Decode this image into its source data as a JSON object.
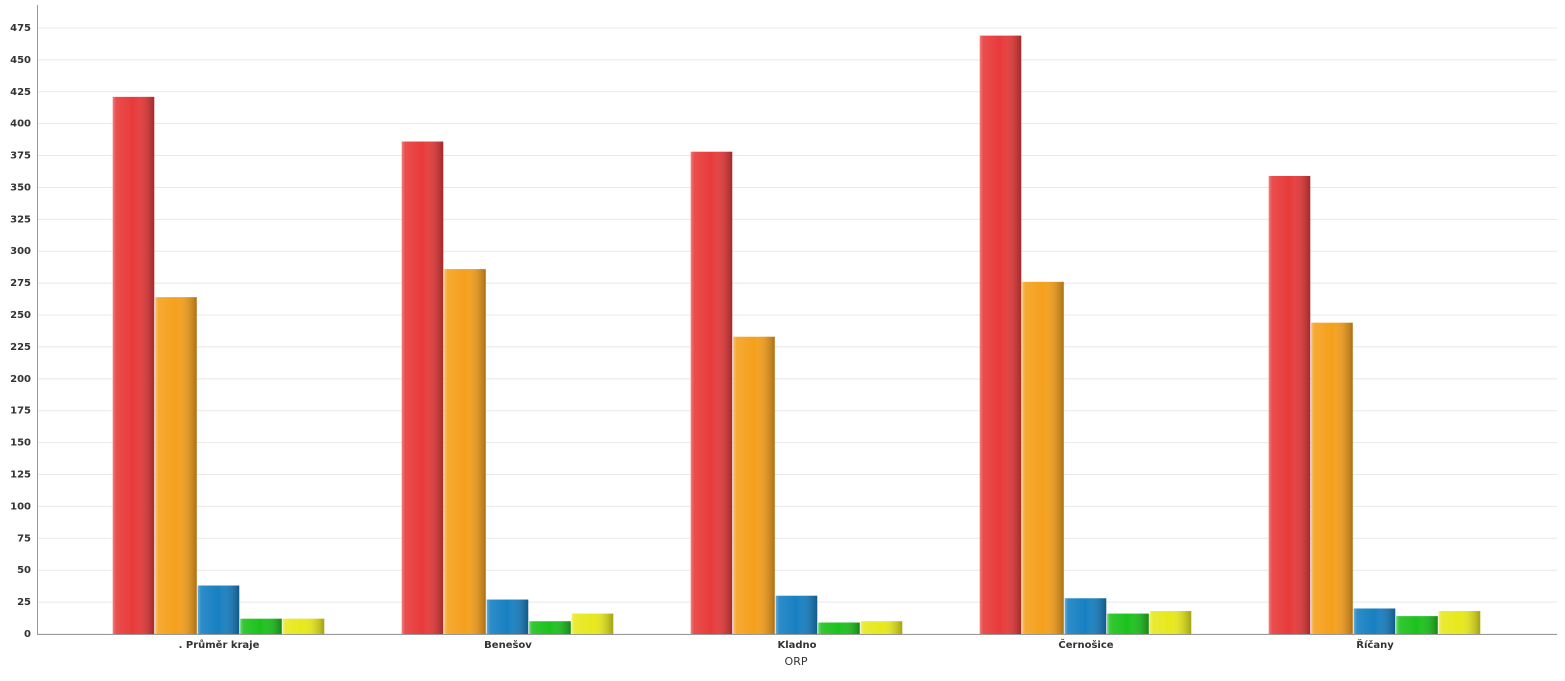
{
  "chart_data": {
    "type": "bar",
    "x_label": "ORP",
    "categories": [
      ". Průměr kraje",
      "Benešov",
      "Kladno",
      "Černošice",
      "Říčany"
    ],
    "series": [
      {
        "color": "#e83a3a",
        "values": [
          421,
          386,
          378,
          469,
          359
        ]
      },
      {
        "color": "#f5a01c",
        "values": [
          264,
          286,
          233,
          276,
          244
        ]
      },
      {
        "color": "#1780c2",
        "values": [
          38,
          27,
          30,
          28,
          20
        ]
      },
      {
        "color": "#1cc21c",
        "values": [
          12,
          10,
          9,
          16,
          14
        ]
      },
      {
        "color": "#e8e81c",
        "values": [
          12,
          16,
          10,
          18,
          18
        ]
      }
    ],
    "ylim": [
      0,
      493
    ],
    "yticks": [
      0,
      25,
      50,
      75,
      100,
      125,
      150,
      175,
      200,
      225,
      250,
      275,
      300,
      325,
      350,
      375,
      400,
      425,
      450,
      475
    ],
    "grid": true
  }
}
